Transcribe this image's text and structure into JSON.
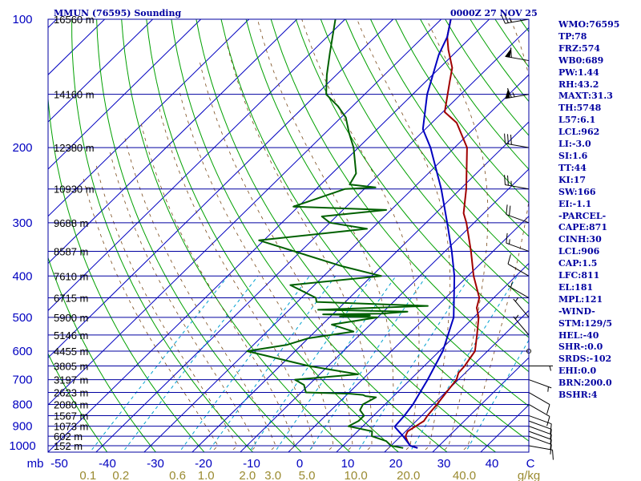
{
  "header": {
    "title": "MMUN (76595) Sounding",
    "datetime": "0000Z 27 NOV 25"
  },
  "chart_data": {
    "type": "skew-t",
    "title": "MMUN (76595) Sounding",
    "datetime": "0000Z 27 NOV 25",
    "y_axis": {
      "label": "mb",
      "ticks": [
        100,
        200,
        300,
        400,
        500,
        600,
        700,
        800,
        900,
        1000
      ],
      "range": [
        100,
        1050
      ],
      "scale": "log"
    },
    "x_axis": {
      "ticks": [
        -50,
        -40,
        -30,
        -20,
        -10,
        0,
        10,
        20,
        30,
        40
      ],
      "label": "°C"
    },
    "axis_end_label": "C",
    "mixing_ratio_axis": {
      "label": "g/kg",
      "ticks": [
        "0.1",
        "0.2",
        "0.6",
        "1.0",
        "2.0",
        "3.0",
        "5.0",
        "10.0",
        "20.0",
        "40.0"
      ],
      "values": [
        0.1,
        0.2,
        0.6,
        1.0,
        2.0,
        3.0,
        5.0,
        10.0,
        20.0,
        40.0
      ]
    },
    "height_labels": [
      {
        "p": 100,
        "label": "16560 m"
      },
      {
        "p": 150,
        "label": "14160 m"
      },
      {
        "p": 200,
        "label": "12380 m"
      },
      {
        "p": 250,
        "label": "10930 m"
      },
      {
        "p": 300,
        "label": "9688 m"
      },
      {
        "p": 350,
        "label": "8587 m"
      },
      {
        "p": 400,
        "label": "7610 m"
      },
      {
        "p": 450,
        "label": "6715 m"
      },
      {
        "p": 500,
        "label": "5900 m"
      },
      {
        "p": 550,
        "label": "5146 m"
      },
      {
        "p": 600,
        "label": "4455 m"
      },
      {
        "p": 650,
        "label": "3805 m"
      },
      {
        "p": 700,
        "label": "3197 m"
      },
      {
        "p": 750,
        "label": "2623 m"
      },
      {
        "p": 800,
        "label": "2080 m"
      },
      {
        "p": 850,
        "label": "1567 m"
      },
      {
        "p": 900,
        "label": "1073 m"
      },
      {
        "p": 950,
        "label": "602 m"
      },
      {
        "p": 1000,
        "label": "152 m"
      }
    ],
    "series": [
      {
        "name": "temperature",
        "color": "#a00000",
        "points": [
          [
            1012,
            26
          ],
          [
            1000,
            24
          ],
          [
            975,
            22.4
          ],
          [
            950,
            21
          ],
          [
            925,
            20.4
          ],
          [
            900,
            21
          ],
          [
            875,
            21.6
          ],
          [
            850,
            21.2
          ],
          [
            800,
            20.8
          ],
          [
            750,
            20.2
          ],
          [
            700,
            19.6
          ],
          [
            675,
            18.6
          ],
          [
            650,
            18.4
          ],
          [
            600,
            17.4
          ],
          [
            550,
            14.4
          ],
          [
            500,
            11
          ],
          [
            475,
            8.6
          ],
          [
            450,
            7
          ],
          [
            400,
            1.2
          ],
          [
            350,
            -4.6
          ],
          [
            300,
            -11.6
          ],
          [
            285,
            -14.2
          ],
          [
            250,
            -18.8
          ],
          [
            200,
            -27.4
          ],
          [
            175,
            -34.8
          ],
          [
            165,
            -39.6
          ],
          [
            140,
            -45
          ],
          [
            130,
            -47.4
          ],
          [
            118,
            -52
          ],
          [
            110,
            -55
          ],
          [
            100,
            -58
          ]
        ]
      },
      {
        "name": "dewpoint",
        "color": "#006000",
        "points": [
          [
            1012,
            23
          ],
          [
            1000,
            20
          ],
          [
            975,
            18
          ],
          [
            950,
            14
          ],
          [
            925,
            13
          ],
          [
            900,
            7
          ],
          [
            875,
            8
          ],
          [
            850,
            8
          ],
          [
            825,
            6
          ],
          [
            800,
            5.4
          ],
          [
            770,
            6.6
          ],
          [
            765,
            4.2
          ],
          [
            760,
            3.4
          ],
          [
            755,
            0.4
          ],
          [
            750,
            -9
          ],
          [
            720,
            -11
          ],
          [
            700,
            -14
          ],
          [
            680,
            -2
          ],
          [
            650,
            -14
          ],
          [
            600,
            -30
          ],
          [
            580,
            -23
          ],
          [
            560,
            -20
          ],
          [
            540,
            -12
          ],
          [
            520,
            -18
          ],
          [
            500,
            -10
          ],
          [
            498,
            -18
          ],
          [
            495,
            -12
          ],
          [
            492,
            -22
          ],
          [
            490,
            -10
          ],
          [
            485,
            -5
          ],
          [
            480,
            -24
          ],
          [
            470,
            -2
          ],
          [
            460,
            -26
          ],
          [
            450,
            -27
          ],
          [
            420,
            -35
          ],
          [
            400,
            -18
          ],
          [
            380,
            -28
          ],
          [
            330,
            -51
          ],
          [
            310,
            -31
          ],
          [
            300,
            -40
          ],
          [
            290,
            -43
          ],
          [
            280,
            -31
          ],
          [
            275,
            -51
          ],
          [
            250,
            -44
          ],
          [
            248,
            -38
          ],
          [
            244,
            -44
          ],
          [
            230,
            -45
          ],
          [
            200,
            -51
          ],
          [
            185,
            -55
          ],
          [
            170,
            -59
          ],
          [
            160,
            -63
          ],
          [
            150,
            -68
          ],
          [
            135,
            -72
          ],
          [
            120,
            -76
          ],
          [
            100,
            -82
          ]
        ]
      },
      {
        "name": "parcel",
        "color": "#0000c0",
        "points": [
          [
            1012,
            26
          ],
          [
            1000,
            24
          ],
          [
            950,
            20.5
          ],
          [
            906,
            17
          ],
          [
            900,
            16.7
          ],
          [
            850,
            16.4
          ],
          [
            800,
            15.8
          ],
          [
            700,
            13.6
          ],
          [
            600,
            10.7
          ],
          [
            500,
            5.8
          ],
          [
            400,
            -2.8
          ],
          [
            350,
            -8.6
          ],
          [
            300,
            -15.6
          ],
          [
            250,
            -24
          ],
          [
            200,
            -35
          ],
          [
            181,
            -40.5
          ],
          [
            150,
            -47
          ],
          [
            121,
            -53
          ],
          [
            110,
            -55
          ],
          [
            100,
            -58
          ]
        ]
      }
    ],
    "wind_barbs": [
      {
        "p": 1000,
        "dir": 100,
        "spd": 10
      },
      {
        "p": 950,
        "dir": 110,
        "spd": 10
      },
      {
        "p": 925,
        "dir": 110,
        "spd": 10
      },
      {
        "p": 900,
        "dir": 110,
        "spd": 10
      },
      {
        "p": 875,
        "dir": 110,
        "spd": 10
      },
      {
        "p": 850,
        "dir": 110,
        "spd": 10
      },
      {
        "p": 800,
        "dir": 120,
        "spd": 10
      },
      {
        "p": 750,
        "dir": 120,
        "spd": 10
      },
      {
        "p": 700,
        "dir": 110,
        "spd": 5
      },
      {
        "p": 650,
        "dir": 90,
        "spd": 5
      },
      {
        "p": 600,
        "dir": 0,
        "spd": 0
      },
      {
        "p": 550,
        "dir": 320,
        "spd": 5
      },
      {
        "p": 500,
        "dir": 320,
        "spd": 5
      },
      {
        "p": 450,
        "dir": 300,
        "spd": 5
      },
      {
        "p": 400,
        "dir": 300,
        "spd": 10
      },
      {
        "p": 350,
        "dir": 290,
        "spd": 15
      },
      {
        "p": 300,
        "dir": 290,
        "spd": 20
      },
      {
        "p": 250,
        "dir": 280,
        "spd": 25
      },
      {
        "p": 200,
        "dir": 280,
        "spd": 30
      },
      {
        "p": 150,
        "dir": 260,
        "spd": 65
      },
      {
        "p": 125,
        "dir": 280,
        "spd": 60
      },
      {
        "p": 100,
        "dir": 260,
        "spd": 25
      }
    ]
  },
  "indices": [
    "WMO:76595",
    "TP:78",
    "FRZ:574",
    "WB0:689",
    "PW:1.44",
    "RH:43.2",
    "MAXT:31.3",
    "TH:5748",
    "L57:6.1",
    "LCL:962",
    "LI:-3.0",
    "SI:1.6",
    "TT:44",
    "KI:17",
    "SW:166",
    "EI:-1.1",
    "-PARCEL-",
    "CAPE:871",
    "CINH:30",
    "LCL:906",
    "CAP:1.5",
    "LFC:811",
    "EL:181",
    "MPL:121",
    "-WIND-",
    "STM:129/5",
    "HEL:-40",
    "SHR-:0.0",
    "SRDS:-102",
    "EHI:0.0",
    "BRN:200.0",
    "BSHR:4"
  ]
}
